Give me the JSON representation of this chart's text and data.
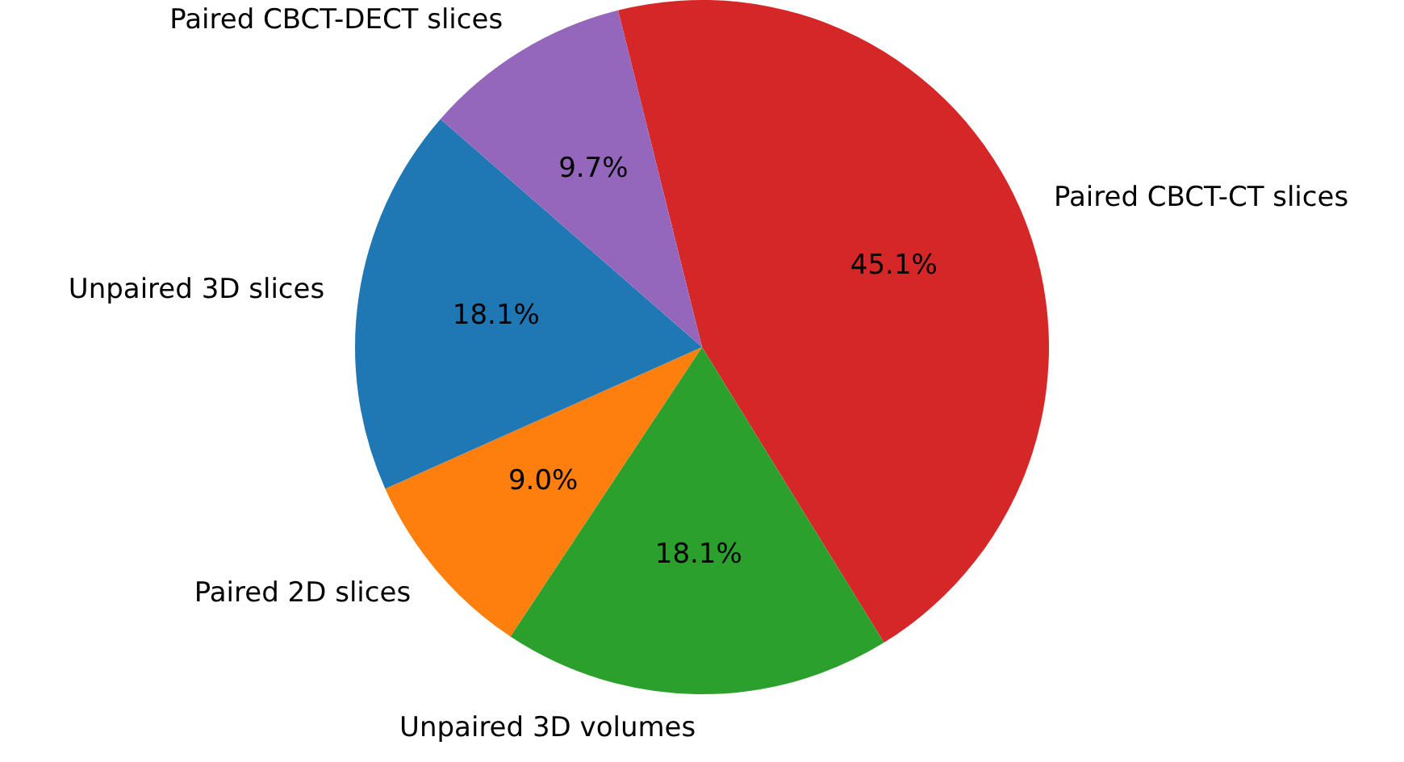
{
  "chart_data": {
    "type": "pie",
    "categories": [
      "Paired CBCT-CT slices",
      "Unpaired 3D volumes",
      "Paired 2D slices",
      "Unpaired 3D slices",
      "Paired CBCT-DECT slices"
    ],
    "values": [
      45.1,
      18.1,
      9.0,
      18.1,
      9.7
    ],
    "colors": [
      "#d62728",
      "#2ca02c",
      "#ff7f0e",
      "#1f77b4",
      "#9467bd"
    ],
    "value_labels": [
      "45.1%",
      "18.1%",
      "9.0%",
      "18.1%",
      "9.7%"
    ],
    "legend": false
  }
}
